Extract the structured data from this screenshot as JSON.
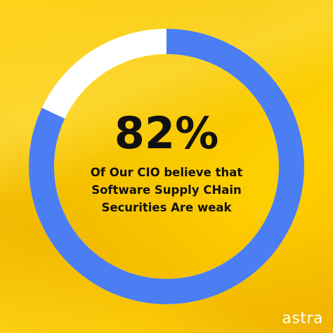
{
  "chart_data": {
    "type": "donut",
    "values": [
      82
    ],
    "value_labels": [
      "82%"
    ],
    "caption": "Of Our CIO believe that Software Supply CHain Securities Are weak",
    "color": "#4a7ef2",
    "rest_color": "#ffffff",
    "brand": "astra"
  }
}
